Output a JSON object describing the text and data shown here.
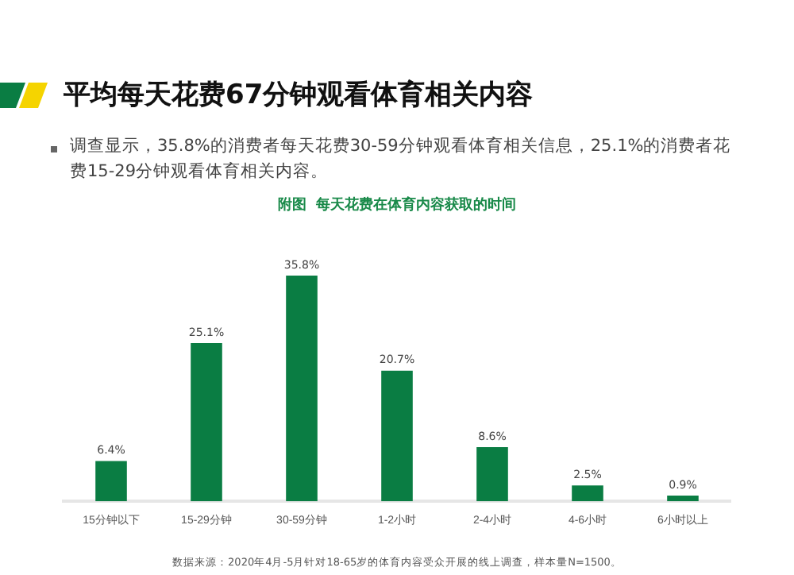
{
  "chart_data": {
    "type": "bar",
    "title": "平均每天花费67分钟观看体育相关内容",
    "subtitle": "调查显示，35.8%的消费者每天花费30-59分钟观看体育相关信息，25.1%的消费者花费15-29分钟观看体育相关内容。",
    "xlabel": "附图  每天花费在体育内容获取的时间",
    "categories": [
      "15分钟以下",
      "15-29分钟",
      "30-59分钟",
      "1-2小时",
      "2-4小时",
      "4-6小时",
      "6小时以上"
    ],
    "values": [
      6.4,
      25.1,
      35.8,
      20.7,
      8.6,
      2.5,
      0.9
    ],
    "value_labels": [
      "6.4%",
      "25.1%",
      "35.8%",
      "20.7%",
      "8.6%",
      "2.5%",
      "0.9%"
    ],
    "color": "#0a7d43",
    "grid": false,
    "legend": false,
    "annotations": [
      "数据来源：2020年4月-5月针对18-65岁的体育内容受众开展的线上调查，样本量N=1500。"
    ]
  }
}
